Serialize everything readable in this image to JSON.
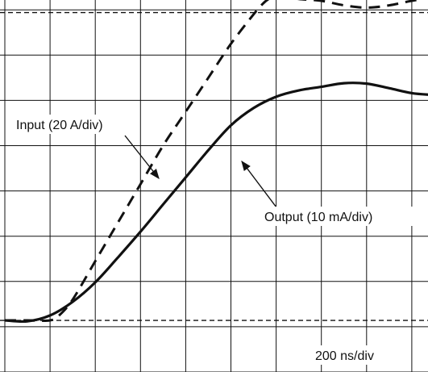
{
  "chart_data": {
    "type": "line",
    "title": "",
    "xlabel": "",
    "ylabel": "",
    "grid": true,
    "grid_divisions": {
      "x": 10,
      "y": 8
    },
    "x_unit": "div",
    "y_unit": "div",
    "xlim": [
      0,
      9.49
    ],
    "ylim": [
      0,
      8.0
    ],
    "series": [
      {
        "name": "Input (20 A/div)",
        "line_style": "dashed",
        "x": [
          0.0,
          0.5,
          1.0,
          1.2,
          1.5,
          2.0,
          2.5,
          3.0,
          3.5,
          4.0,
          4.5,
          5.0,
          5.5,
          5.7,
          5.85,
          6.0,
          6.2,
          6.5,
          7.0,
          7.5,
          8.0,
          8.5,
          9.0,
          9.49
        ],
        "y": [
          1.14,
          1.14,
          1.14,
          1.25,
          1.6,
          2.45,
          3.3,
          4.15,
          5.0,
          5.75,
          6.5,
          7.25,
          7.9,
          8.13,
          8.25,
          8.3,
          8.29,
          8.24,
          8.2,
          8.1,
          8.05,
          8.1,
          8.2,
          8.28
        ]
      },
      {
        "name": "Output (10 mA/div)",
        "line_style": "solid",
        "x": [
          0.0,
          0.5,
          1.0,
          1.5,
          2.0,
          2.5,
          3.0,
          3.5,
          4.0,
          4.5,
          5.0,
          5.5,
          6.0,
          6.5,
          7.0,
          7.5,
          8.0,
          8.5,
          9.0,
          9.49
        ],
        "y": [
          1.14,
          1.12,
          1.25,
          1.55,
          1.98,
          2.53,
          3.1,
          3.7,
          4.3,
          4.9,
          5.45,
          5.83,
          6.08,
          6.22,
          6.3,
          6.38,
          6.37,
          6.27,
          6.16,
          6.12
        ]
      }
    ],
    "reference_lines": [
      {
        "style": "dashed",
        "y": 1.14
      },
      {
        "style": "dashed",
        "y": 7.94
      }
    ],
    "annotations": [
      {
        "text": "Input (20 A/div)",
        "arrow_to": "input"
      },
      {
        "text": "Output (10 mA/div)",
        "arrow_to": "output"
      },
      {
        "text": "200 ns/div"
      }
    ]
  }
}
